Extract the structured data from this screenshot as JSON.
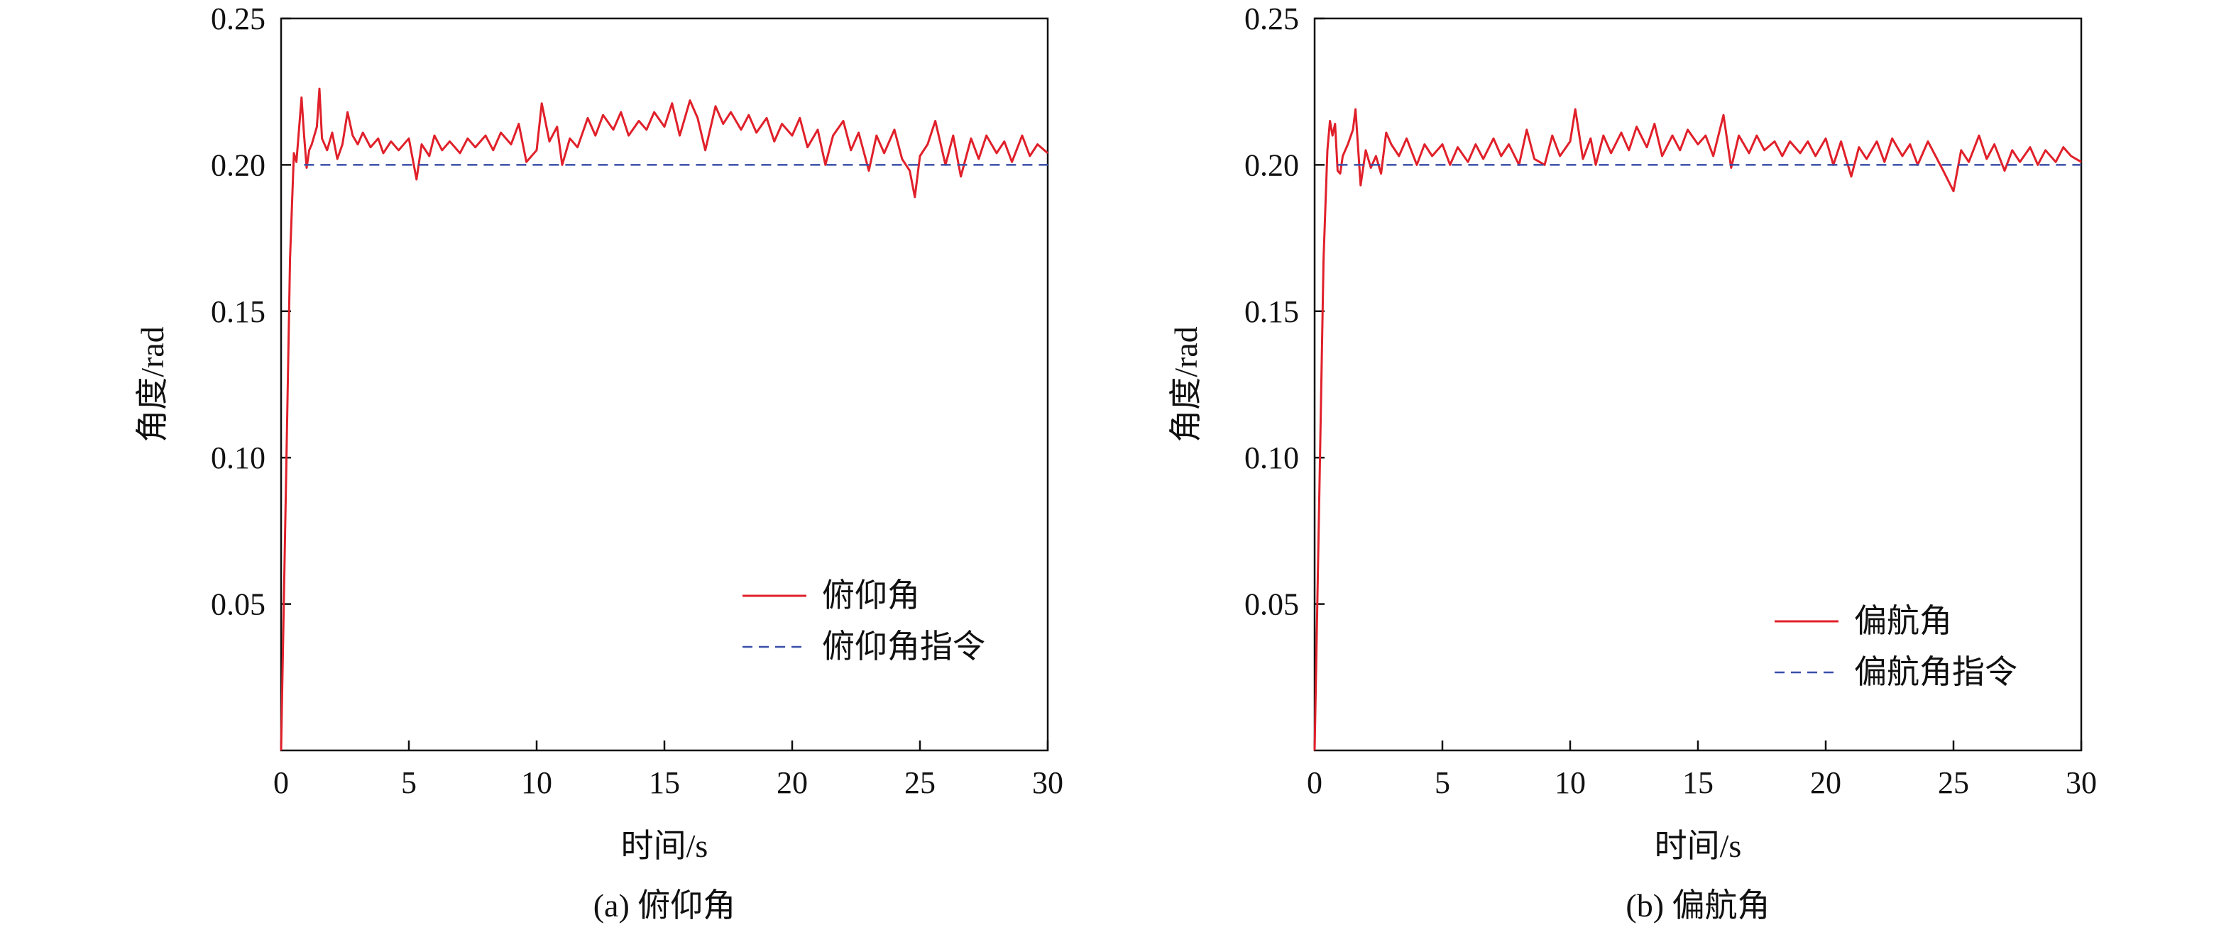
{
  "colors": {
    "measured": "#e0202a",
    "command": "#3a4fa8",
    "axis": "#111111"
  },
  "chart_data": [
    {
      "type": "line",
      "caption": "(a) 俯仰角",
      "xlabel": "时间/s",
      "ylabel": "角度/rad",
      "xlim": [
        0,
        30
      ],
      "ylim": [
        0,
        0.25
      ],
      "xticks": [
        "0",
        "5",
        "10",
        "15",
        "20",
        "25",
        "30"
      ],
      "yticks": [
        "0.05",
        "0.10",
        "0.15",
        "0.20",
        "0.25"
      ],
      "legend_position": "lower-right",
      "series": [
        {
          "name": "俯仰角",
          "style": "solid",
          "x": [
            0.0,
            0.2,
            0.35,
            0.5,
            0.6,
            0.7,
            0.8,
            0.9,
            1.0,
            1.1,
            1.2,
            1.4,
            1.5,
            1.6,
            1.8,
            2.0,
            2.2,
            2.4,
            2.6,
            2.8,
            3.0,
            3.2,
            3.5,
            3.8,
            4.0,
            4.3,
            4.6,
            5.0,
            5.3,
            5.5,
            5.8,
            6.0,
            6.3,
            6.6,
            7.0,
            7.3,
            7.6,
            8.0,
            8.3,
            8.6,
            9.0,
            9.3,
            9.6,
            10.0,
            10.2,
            10.5,
            10.8,
            11.0,
            11.3,
            11.6,
            12.0,
            12.3,
            12.6,
            13.0,
            13.3,
            13.6,
            14.0,
            14.3,
            14.6,
            15.0,
            15.3,
            15.6,
            16.0,
            16.3,
            16.6,
            17.0,
            17.3,
            17.6,
            18.0,
            18.3,
            18.6,
            19.0,
            19.3,
            19.6,
            20.0,
            20.3,
            20.6,
            21.0,
            21.3,
            21.6,
            22.0,
            22.3,
            22.6,
            23.0,
            23.3,
            23.6,
            24.0,
            24.3,
            24.6,
            24.8,
            25.0,
            25.3,
            25.6,
            26.0,
            26.3,
            26.6,
            27.0,
            27.3,
            27.6,
            28.0,
            28.3,
            28.6,
            29.0,
            29.3,
            29.6,
            30.0
          ],
          "y": [
            0.0,
            0.095,
            0.168,
            0.204,
            0.201,
            0.212,
            0.223,
            0.21,
            0.199,
            0.205,
            0.207,
            0.213,
            0.226,
            0.209,
            0.205,
            0.211,
            0.202,
            0.207,
            0.218,
            0.21,
            0.207,
            0.211,
            0.206,
            0.209,
            0.204,
            0.208,
            0.205,
            0.209,
            0.195,
            0.207,
            0.203,
            0.21,
            0.205,
            0.208,
            0.204,
            0.209,
            0.206,
            0.21,
            0.205,
            0.211,
            0.207,
            0.214,
            0.201,
            0.205,
            0.221,
            0.208,
            0.213,
            0.2,
            0.209,
            0.206,
            0.216,
            0.21,
            0.217,
            0.212,
            0.218,
            0.21,
            0.215,
            0.212,
            0.218,
            0.213,
            0.221,
            0.21,
            0.222,
            0.216,
            0.205,
            0.22,
            0.214,
            0.218,
            0.212,
            0.217,
            0.211,
            0.216,
            0.208,
            0.214,
            0.21,
            0.216,
            0.206,
            0.212,
            0.2,
            0.21,
            0.215,
            0.205,
            0.211,
            0.198,
            0.21,
            0.204,
            0.212,
            0.202,
            0.198,
            0.189,
            0.203,
            0.207,
            0.215,
            0.2,
            0.21,
            0.196,
            0.209,
            0.202,
            0.21,
            0.204,
            0.208,
            0.201,
            0.21,
            0.203,
            0.207,
            0.204
          ]
        },
        {
          "name": "俯仰角指令",
          "style": "dashed",
          "x": [
            0.9,
            30
          ],
          "y": [
            0.2,
            0.2
          ]
        }
      ]
    },
    {
      "type": "line",
      "caption": "(b) 偏航角",
      "xlabel": "时间/s",
      "ylabel": "角度/rad",
      "xlim": [
        0,
        30
      ],
      "ylim": [
        0,
        0.25
      ],
      "xticks": [
        "0",
        "5",
        "10",
        "15",
        "20",
        "25",
        "30"
      ],
      "yticks": [
        "0.05",
        "0.10",
        "0.15",
        "0.20",
        "0.25"
      ],
      "legend_position": "lower-right",
      "series": [
        {
          "name": "偏航角",
          "style": "solid",
          "x": [
            0.0,
            0.2,
            0.35,
            0.5,
            0.6,
            0.7,
            0.8,
            0.9,
            1.0,
            1.1,
            1.3,
            1.5,
            1.6,
            1.8,
            2.0,
            2.2,
            2.4,
            2.6,
            2.8,
            3.0,
            3.3,
            3.6,
            4.0,
            4.3,
            4.6,
            5.0,
            5.3,
            5.6,
            6.0,
            6.3,
            6.6,
            7.0,
            7.3,
            7.6,
            8.0,
            8.3,
            8.6,
            9.0,
            9.3,
            9.6,
            10.0,
            10.2,
            10.5,
            10.8,
            11.0,
            11.3,
            11.6,
            12.0,
            12.3,
            12.6,
            13.0,
            13.3,
            13.6,
            14.0,
            14.3,
            14.6,
            15.0,
            15.3,
            15.6,
            16.0,
            16.3,
            16.6,
            17.0,
            17.3,
            17.6,
            18.0,
            18.3,
            18.6,
            19.0,
            19.3,
            19.6,
            20.0,
            20.3,
            20.6,
            21.0,
            21.3,
            21.6,
            22.0,
            22.3,
            22.6,
            23.0,
            23.3,
            23.6,
            24.0,
            24.3,
            24.6,
            25.0,
            25.3,
            25.6,
            26.0,
            26.3,
            26.6,
            27.0,
            27.3,
            27.6,
            28.0,
            28.3,
            28.6,
            29.0,
            29.3,
            29.6,
            30.0
          ],
          "y": [
            0.0,
            0.095,
            0.168,
            0.205,
            0.215,
            0.21,
            0.214,
            0.198,
            0.197,
            0.203,
            0.207,
            0.212,
            0.219,
            0.193,
            0.205,
            0.199,
            0.203,
            0.197,
            0.211,
            0.207,
            0.203,
            0.209,
            0.2,
            0.207,
            0.203,
            0.207,
            0.2,
            0.206,
            0.201,
            0.207,
            0.202,
            0.209,
            0.203,
            0.207,
            0.2,
            0.212,
            0.202,
            0.2,
            0.21,
            0.203,
            0.208,
            0.219,
            0.202,
            0.209,
            0.2,
            0.21,
            0.204,
            0.211,
            0.205,
            0.213,
            0.206,
            0.214,
            0.203,
            0.21,
            0.205,
            0.212,
            0.207,
            0.21,
            0.203,
            0.217,
            0.199,
            0.21,
            0.204,
            0.21,
            0.205,
            0.208,
            0.203,
            0.208,
            0.204,
            0.208,
            0.203,
            0.209,
            0.2,
            0.208,
            0.196,
            0.206,
            0.202,
            0.208,
            0.201,
            0.209,
            0.203,
            0.207,
            0.2,
            0.208,
            0.203,
            0.198,
            0.191,
            0.205,
            0.201,
            0.21,
            0.202,
            0.207,
            0.198,
            0.205,
            0.201,
            0.206,
            0.2,
            0.205,
            0.201,
            0.206,
            0.203,
            0.201
          ]
        },
        {
          "name": "偏航角指令",
          "style": "dashed",
          "x": [
            0.9,
            30
          ],
          "y": [
            0.2,
            0.2
          ]
        }
      ]
    }
  ]
}
